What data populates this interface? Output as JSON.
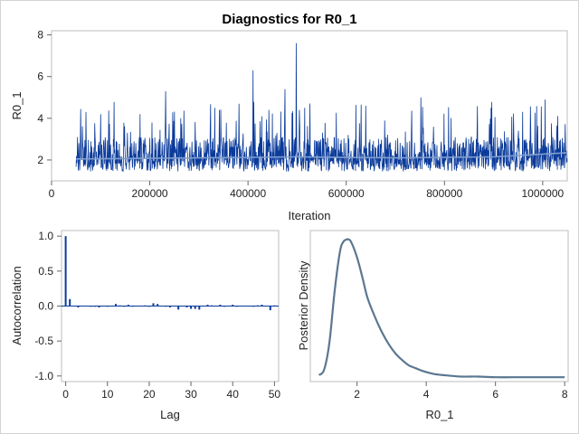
{
  "title": "Diagnostics for R0_1",
  "colors": {
    "trace": "#0a3a9a",
    "smooth": "#7f9fcf",
    "density": "#5b7791",
    "bar": "#0a3a9a",
    "frame": "#bdbdbd",
    "tickline": "#666666"
  },
  "chart_data": [
    {
      "type": "line",
      "name": "trace",
      "xlabel": "Iteration",
      "ylabel": "R0_1",
      "xlim": [
        0,
        1050000
      ],
      "ylim": [
        1.0,
        8.2
      ],
      "x_ticks": [
        0,
        200000,
        400000,
        600000,
        800000,
        1000000
      ],
      "y_ticks": [
        2,
        4,
        6,
        8
      ],
      "x_tick_labels": [
        "0",
        "200000",
        "400000",
        "600000",
        "800000",
        "1000000"
      ],
      "y_tick_labels": [
        "2",
        "4",
        "6",
        "8"
      ],
      "iteration_range": [
        50000,
        1050000
      ],
      "baseline": 2.0,
      "peaks": [
        {
          "x": 70000,
          "y": 4.3
        },
        {
          "x": 100000,
          "y": 4.2
        },
        {
          "x": 180000,
          "y": 4.2
        },
        {
          "x": 232000,
          "y": 5.3
        },
        {
          "x": 263000,
          "y": 4.0
        },
        {
          "x": 382000,
          "y": 4.7
        },
        {
          "x": 410000,
          "y": 6.3
        },
        {
          "x": 475000,
          "y": 5.4
        },
        {
          "x": 498000,
          "y": 7.6
        },
        {
          "x": 515000,
          "y": 4.5
        },
        {
          "x": 640000,
          "y": 4.6
        },
        {
          "x": 752000,
          "y": 5.0
        },
        {
          "x": 895000,
          "y": 4.5
        },
        {
          "x": 1005000,
          "y": 4.9
        }
      ],
      "smooth": {
        "x": [
          50000,
          300000,
          500000,
          700000,
          900000,
          1050000
        ],
        "y": [
          2.05,
          2.1,
          2.15,
          2.1,
          2.15,
          2.35
        ]
      }
    },
    {
      "type": "bar",
      "name": "autocorrelation",
      "xlabel": "Lag",
      "ylabel": "Autocorrelation",
      "xlim": [
        -1,
        51
      ],
      "ylim": [
        -1.08,
        1.08
      ],
      "x_ticks": [
        0,
        10,
        20,
        30,
        40,
        50
      ],
      "y_ticks": [
        1.0,
        0.5,
        0.0,
        -0.5,
        -1.0
      ],
      "x_tick_labels": [
        "0",
        "10",
        "20",
        "30",
        "40",
        "50"
      ],
      "y_tick_labels": [
        "1.0",
        "0.5",
        "0.0",
        "-0.5",
        "-1.0"
      ],
      "lags": [
        0,
        1,
        2,
        3,
        4,
        5,
        6,
        7,
        8,
        9,
        10,
        11,
        12,
        13,
        14,
        15,
        16,
        17,
        18,
        19,
        20,
        21,
        22,
        23,
        24,
        25,
        26,
        27,
        28,
        29,
        30,
        31,
        32,
        33,
        34,
        35,
        36,
        37,
        38,
        39,
        40,
        41,
        42,
        43,
        44,
        45,
        46,
        47,
        48,
        49,
        50
      ],
      "values": [
        1.0,
        0.1,
        0.0,
        -0.02,
        0.0,
        0.0,
        -0.01,
        -0.01,
        -0.02,
        0.0,
        -0.01,
        0.0,
        0.03,
        0.01,
        -0.01,
        0.02,
        -0.01,
        0.0,
        0.0,
        0.01,
        -0.01,
        0.04,
        0.03,
        0.0,
        -0.01,
        -0.02,
        0.0,
        -0.05,
        0.0,
        -0.02,
        -0.04,
        -0.04,
        -0.05,
        0.0,
        0.02,
        0.01,
        0.0,
        0.02,
        -0.01,
        0.0,
        0.02,
        -0.01,
        0.0,
        0.0,
        0.0,
        -0.01,
        0.01,
        0.02,
        0.0,
        -0.06,
        0.01
      ]
    },
    {
      "type": "line",
      "name": "posterior-density",
      "xlabel": "R0_1",
      "ylabel": "Posterior Density",
      "xlim": [
        0.65,
        8.1
      ],
      "ylim": [
        0,
        1.05
      ],
      "x_ticks": [
        2,
        4,
        6,
        8
      ],
      "x_tick_labels": [
        "2",
        "4",
        "6",
        "8"
      ],
      "x": [
        0.9,
        1.05,
        1.2,
        1.35,
        1.5,
        1.6,
        1.75,
        1.85,
        2.0,
        2.15,
        2.3,
        2.5,
        2.7,
        2.9,
        3.1,
        3.3,
        3.5,
        3.7,
        3.9,
        4.2,
        4.5,
        5.0,
        5.5,
        6.0,
        6.5,
        7.0,
        7.5,
        8.0
      ],
      "y": [
        0.02,
        0.06,
        0.25,
        0.62,
        0.9,
        0.98,
        1.0,
        0.97,
        0.87,
        0.73,
        0.58,
        0.45,
        0.34,
        0.25,
        0.18,
        0.13,
        0.09,
        0.07,
        0.05,
        0.03,
        0.02,
        0.01,
        0.01,
        0.005,
        0.005,
        0.005,
        0.005,
        0.005
      ]
    }
  ]
}
